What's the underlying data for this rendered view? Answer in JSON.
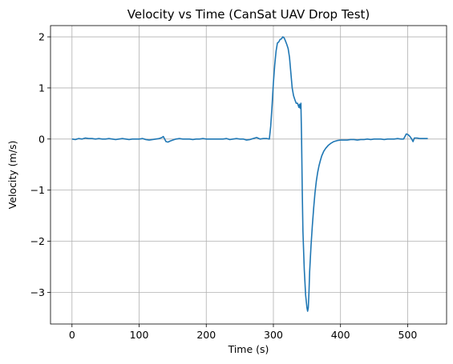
{
  "chart_data": {
    "type": "line",
    "title": "Velocity vs Time (CanSat UAV Drop Test)",
    "xlabel": "Time (s)",
    "ylabel": "Velocity (m/s)",
    "xlim": [
      -32,
      558
    ],
    "ylim": [
      -3.62,
      2.22
    ],
    "xticks": [
      0,
      100,
      200,
      300,
      400,
      500
    ],
    "yticks": [
      -3,
      -2,
      -1,
      0,
      1,
      2
    ],
    "grid": true,
    "series": [
      {
        "color": "#1f77b4",
        "x": [
          0,
          5,
          10,
          15,
          20,
          25,
          30,
          35,
          40,
          45,
          50,
          55,
          60,
          65,
          70,
          75,
          80,
          85,
          90,
          95,
          100,
          105,
          110,
          115,
          120,
          125,
          130,
          134,
          136,
          138,
          140,
          143,
          146,
          150,
          155,
          160,
          165,
          170,
          175,
          180,
          185,
          190,
          195,
          200,
          205,
          210,
          215,
          220,
          225,
          230,
          235,
          240,
          245,
          250,
          255,
          260,
          265,
          270,
          275,
          280,
          285,
          290,
          294,
          296,
          298,
          300,
          302,
          304,
          306,
          308,
          310,
          312,
          314,
          316,
          318,
          320,
          322,
          324,
          326,
          328,
          330,
          332,
          334,
          336,
          338,
          339,
          340,
          341,
          342,
          343,
          344,
          346,
          348,
          350,
          351,
          352,
          353,
          354,
          356,
          358,
          360,
          362,
          364,
          366,
          368,
          370,
          372,
          375,
          378,
          382,
          386,
          390,
          395,
          400,
          405,
          410,
          415,
          420,
          425,
          430,
          435,
          440,
          445,
          450,
          455,
          460,
          465,
          470,
          475,
          480,
          485,
          490,
          494,
          496,
          498,
          500,
          502,
          504,
          506,
          508,
          510,
          514,
          518,
          522,
          526,
          530
        ],
        "y": [
          0.0,
          -0.01,
          0.01,
          0.0,
          0.02,
          0.01,
          0.01,
          0.0,
          0.01,
          0.0,
          0.0,
          0.01,
          0.0,
          -0.01,
          0.0,
          0.01,
          0.0,
          -0.01,
          0.0,
          0.0,
          0.0,
          0.01,
          -0.01,
          -0.02,
          -0.01,
          0.0,
          0.01,
          0.03,
          0.05,
          0.0,
          -0.05,
          -0.06,
          -0.04,
          -0.02,
          0.0,
          0.01,
          0.0,
          0.0,
          0.0,
          -0.01,
          0.0,
          0.0,
          0.01,
          0.0,
          0.0,
          0.0,
          0.0,
          0.0,
          0.0,
          0.01,
          -0.01,
          0.0,
          0.01,
          0.0,
          0.0,
          -0.02,
          -0.01,
          0.01,
          0.03,
          0.0,
          0.01,
          0.01,
          0.0,
          0.25,
          0.65,
          1.1,
          1.45,
          1.72,
          1.88,
          1.9,
          1.95,
          1.96,
          2.0,
          1.98,
          1.92,
          1.85,
          1.77,
          1.6,
          1.3,
          1.0,
          0.85,
          0.77,
          0.7,
          0.7,
          0.62,
          0.68,
          0.6,
          0.7,
          0.0,
          -1.0,
          -1.8,
          -2.55,
          -3.05,
          -3.3,
          -3.37,
          -3.3,
          -3.0,
          -2.6,
          -2.1,
          -1.7,
          -1.35,
          -1.05,
          -0.82,
          -0.65,
          -0.52,
          -0.42,
          -0.33,
          -0.24,
          -0.18,
          -0.12,
          -0.08,
          -0.05,
          -0.03,
          -0.02,
          -0.02,
          -0.02,
          -0.01,
          -0.01,
          -0.02,
          -0.01,
          -0.01,
          0.0,
          -0.01,
          0.0,
          0.0,
          0.0,
          -0.01,
          0.0,
          0.0,
          0.0,
          0.01,
          0.0,
          0.0,
          0.05,
          0.1,
          0.09,
          0.07,
          0.04,
          0.0,
          -0.05,
          0.02,
          0.02,
          0.01,
          0.01,
          0.01,
          0.01
        ]
      }
    ]
  }
}
